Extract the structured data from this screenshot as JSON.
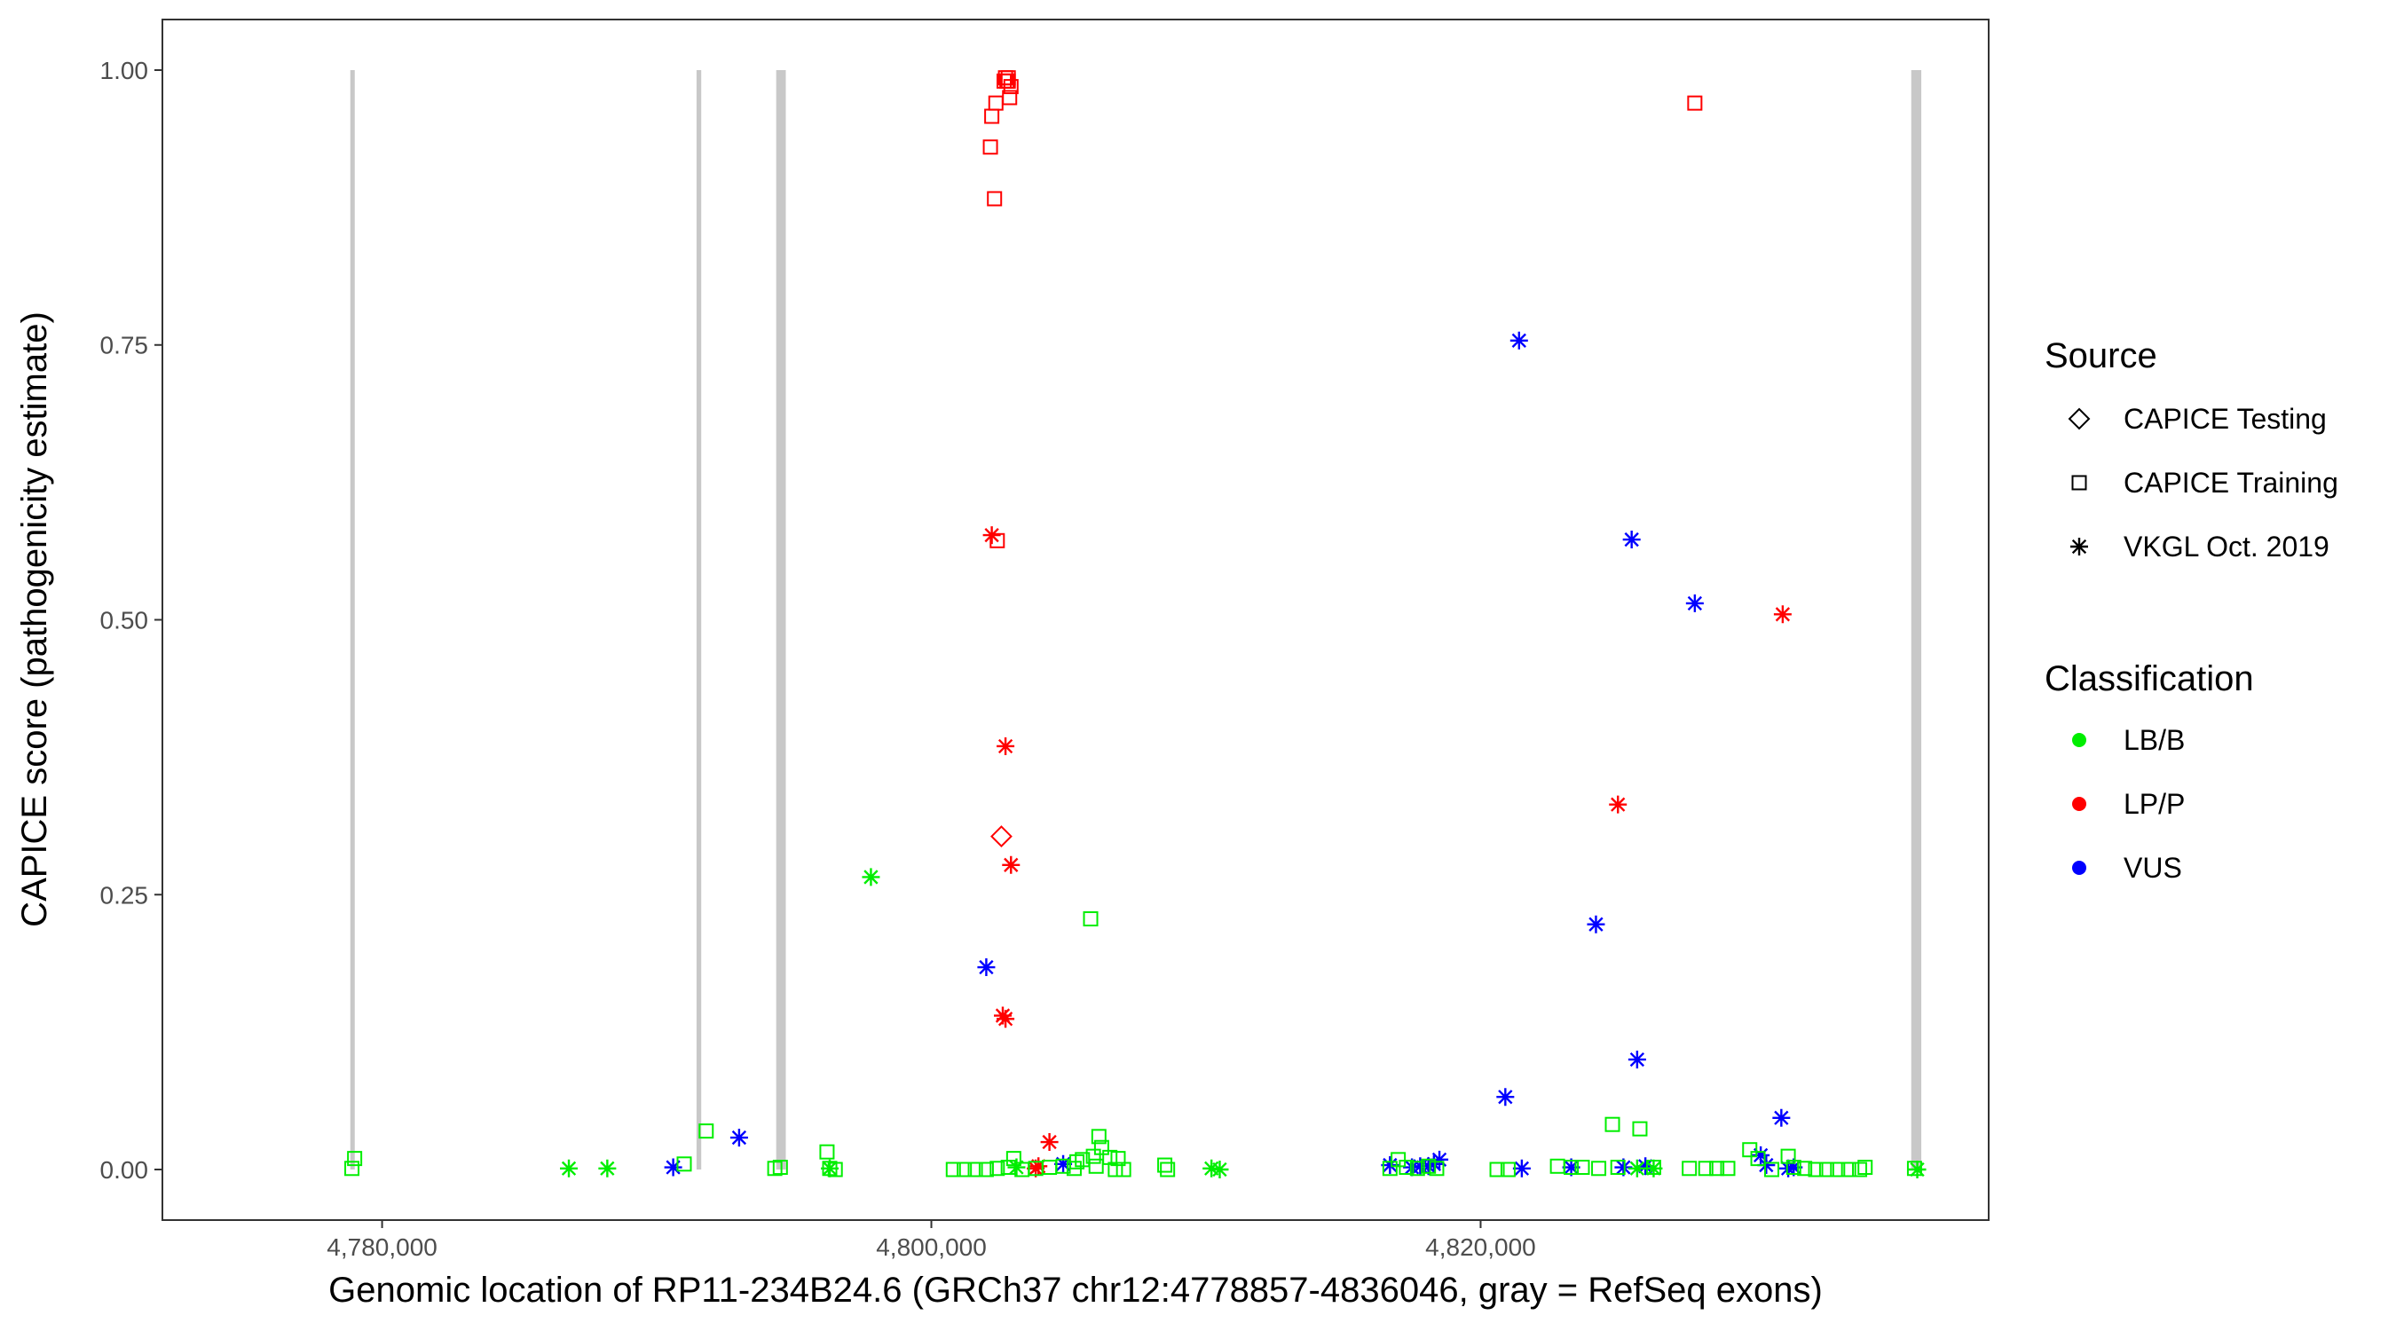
{
  "chart_data": {
    "type": "scatter",
    "xlabel": "Genomic location of RP11-234B24.6 (GRCh37 chr12:4778857-4836046, gray = RefSeq exons)",
    "ylabel": "CAPICE score (pathogenicity estimate)",
    "xlim": [
      4772000,
      4838500
    ],
    "ylim": [
      -0.046,
      1.046
    ],
    "x_ticks": [
      4780000,
      4800000,
      4820000
    ],
    "x_tick_labels": [
      "4,780,000",
      "4,800,000",
      "4,820,000"
    ],
    "y_ticks": [
      0.0,
      0.25,
      0.5,
      0.75,
      1.0
    ],
    "y_tick_labels": [
      "0.00",
      "0.25",
      "0.50",
      "0.75",
      "1.00"
    ],
    "grid": false,
    "exons": [
      {
        "start": 4778857,
        "end": 4778990
      },
      {
        "start": 4791450,
        "end": 4791620
      },
      {
        "start": 4794350,
        "end": 4794700
      },
      {
        "start": 4835680,
        "end": 4836046
      }
    ],
    "legend": {
      "position": "right",
      "source_title": "Source",
      "source_items": [
        {
          "label": "CAPICE Testing",
          "shape": "diamond"
        },
        {
          "label": "CAPICE Training",
          "shape": "square"
        },
        {
          "label": "VKGL Oct. 2019",
          "shape": "asterisk"
        }
      ],
      "class_title": "Classification",
      "class_items": [
        {
          "label": "LB/B",
          "color": "#00ee00"
        },
        {
          "label": "LP/P",
          "color": "#ff0000"
        },
        {
          "label": "VUS",
          "color": "#0000ff"
        }
      ]
    },
    "colors": {
      "LB/B": "#00ee00",
      "LP/P": "#ff0000",
      "VUS": "#0000ff"
    },
    "series": [
      {
        "classification": "LP/P",
        "source": "CAPICE Training",
        "shape": "square",
        "x": [
          4802700,
          4802750,
          4802800,
          4802900,
          4802850,
          4802650,
          4802800,
          4802350,
          4802200,
          4802150,
          4802300,
          4802400,
          4827800
        ],
        "y": [
          0.993,
          0.99,
          0.993,
          0.985,
          0.975,
          0.99,
          0.99,
          0.97,
          0.958,
          0.93,
          0.883,
          0.572,
          0.97
        ]
      },
      {
        "classification": "LP/P",
        "source": "CAPICE Testing",
        "shape": "diamond",
        "x": [
          4802550
        ],
        "y": [
          0.303
        ]
      },
      {
        "classification": "LP/P",
        "source": "VKGL Oct. 2019",
        "shape": "asterisk",
        "x": [
          4802200,
          4802700,
          4802900,
          4802600,
          4802700,
          4804300,
          4803900,
          4803800,
          4831000,
          4825000
        ],
        "y": [
          0.577,
          0.385,
          0.277,
          0.14,
          0.137,
          0.025,
          0.003,
          0.001,
          0.505,
          0.332
        ]
      },
      {
        "classification": "VUS",
        "source": "VKGL Oct. 2019",
        "shape": "asterisk",
        "x": [
          4802000,
          4821400,
          4825500,
          4827800,
          4824200,
          4825700,
          4820900,
          4830950,
          4830200,
          4793000,
          4790600,
          4804800,
          4816700,
          4817500,
          4817800,
          4818100,
          4818300,
          4818500,
          4821500,
          4823300,
          4825200,
          4826000,
          4830400,
          4831200,
          4831400
        ],
        "y": [
          0.184,
          0.754,
          0.573,
          0.515,
          0.223,
          0.1,
          0.066,
          0.047,
          0.013,
          0.029,
          0.002,
          0.005,
          0.004,
          0.002,
          0.003,
          0.003,
          0.005,
          0.009,
          0.001,
          0.002,
          0.002,
          0.003,
          0.004,
          0.001,
          0.002
        ]
      },
      {
        "classification": "LB/B",
        "source": "VKGL Oct. 2019",
        "shape": "asterisk",
        "x": [
          4797800,
          4786800,
          4788200,
          4796300,
          4810200,
          4810500,
          4803100,
          4825700,
          4826300,
          4835900
        ],
        "y": [
          0.266,
          0.001,
          0.001,
          0.001,
          0.001,
          0.0,
          0.002,
          0.001,
          0.001,
          0.0
        ]
      },
      {
        "classification": "LB/B",
        "source": "CAPICE Training",
        "shape": "square",
        "x": [
          4805800,
          4806100,
          4806200,
          4805900,
          4806500,
          4805500,
          4805300,
          4806800,
          4803000,
          4796200,
          4791800,
          4791000,
          4779000,
          4778900,
          4794300,
          4794500,
          4796300,
          4796500,
          4808500,
          4808600,
          4800800,
          4801200,
          4801600,
          4802000,
          4802400,
          4802800,
          4803300,
          4803800,
          4804300,
          4804800,
          4805200,
          4806000,
          4806700,
          4807000,
          4816700,
          4817000,
          4817300,
          4817700,
          4818100,
          4818400,
          4820600,
          4821000,
          4822800,
          4823300,
          4823700,
          4824300,
          4824800,
          4825000,
          4825800,
          4826300,
          4827600,
          4828200,
          4828600,
          4829000,
          4829800,
          4830100,
          4830600,
          4831200,
          4831400,
          4831800,
          4832200,
          4832600,
          4833000,
          4833400,
          4833800,
          4834000,
          4835800
        ],
        "y": [
          0.228,
          0.03,
          0.02,
          0.012,
          0.011,
          0.009,
          0.007,
          0.01,
          0.01,
          0.016,
          0.035,
          0.005,
          0.01,
          0.001,
          0.001,
          0.002,
          0.001,
          0.0,
          0.004,
          0.0,
          0.0,
          0.0,
          0.0,
          0.0,
          0.001,
          0.002,
          0.0,
          0.001,
          0.002,
          0.003,
          0.001,
          0.003,
          0.0,
          0.0,
          0.001,
          0.009,
          0.002,
          0.001,
          0.003,
          0.001,
          0.0,
          0.0,
          0.003,
          0.002,
          0.002,
          0.001,
          0.041,
          0.002,
          0.037,
          0.002,
          0.001,
          0.001,
          0.001,
          0.001,
          0.018,
          0.01,
          0.0,
          0.012,
          0.002,
          0.001,
          0.0,
          0.0,
          0.0,
          0.0,
          0.0,
          0.002,
          0.001
        ]
      }
    ]
  }
}
